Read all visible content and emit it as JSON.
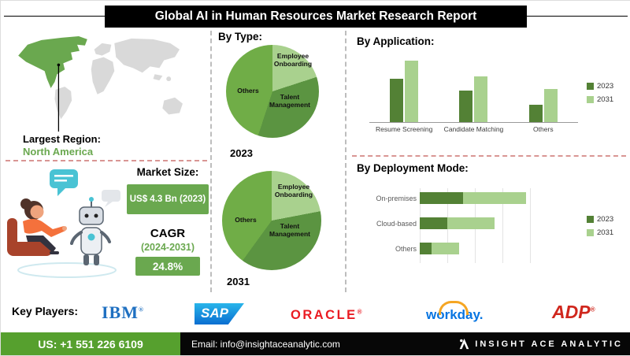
{
  "header": {
    "title": "Global AI in Human Resources Market Research Report"
  },
  "left_panel": {
    "largest_region_label": "Largest Region:",
    "largest_region_value": "North America",
    "market_size_label": "Market Size:",
    "market_size_value": "US$ 4.3 Bn (2023)",
    "cagr_label": "CAGR",
    "cagr_period": "(2024-2031)",
    "cagr_value": "24.8%"
  },
  "sections": {
    "by_type_label": "By Type:",
    "by_application_label": "By Application:",
    "by_deployment_label": "By Deployment Mode:"
  },
  "chart_data": [
    {
      "type": "pie",
      "title": "By Type — 2023",
      "year_label": "2023",
      "labels": [
        "Employee Onboarding",
        "Talent Management",
        "Others"
      ],
      "values": [
        20,
        35,
        45
      ],
      "values_unit": "percent (estimated)",
      "colors": [
        "#a9d18e",
        "#5b9441",
        "#70ad47"
      ]
    },
    {
      "type": "pie",
      "title": "By Type — 2031",
      "year_label": "2031",
      "labels": [
        "Employee Onboarding",
        "Talent Management",
        "Others"
      ],
      "values": [
        22,
        38,
        40
      ],
      "values_unit": "percent (estimated)",
      "colors": [
        "#a9d18e",
        "#5b9441",
        "#70ad47"
      ]
    },
    {
      "type": "bar",
      "title": "By Application",
      "categories": [
        "Resume Screening",
        "Candidate Matching",
        "Others"
      ],
      "series": [
        {
          "name": "2023",
          "values": [
            55,
            40,
            22
          ],
          "color": "#538135"
        },
        {
          "name": "2031",
          "values": [
            78,
            58,
            42
          ],
          "color": "#a9d18e"
        }
      ],
      "xlabel": "",
      "ylabel": "",
      "axis_note": "value axis unlabeled; values are relative heights estimated from pixels",
      "legend_position": "right",
      "grid": false
    },
    {
      "type": "bar",
      "orientation": "horizontal",
      "stacked": true,
      "title": "By Deployment Mode",
      "categories": [
        "On-premises",
        "Cloud-based",
        "Others"
      ],
      "series": [
        {
          "name": "2023",
          "values": [
            55,
            35,
            15
          ],
          "color": "#538135"
        },
        {
          "name": "2031",
          "values": [
            80,
            60,
            35
          ],
          "color": "#a9d18e"
        }
      ],
      "xlabel": "",
      "ylabel": "",
      "axis_note": "value axis unlabeled; values are relative lengths estimated from pixels",
      "legend_position": "right",
      "grid": true
    }
  ],
  "key_players": {
    "label": "Key Players:",
    "logos": [
      {
        "name": "IBM",
        "reg": "®",
        "color": "#1f70c1"
      },
      {
        "name": "SAP",
        "reg": "",
        "color": "#0a6ed1"
      },
      {
        "name": "ORACLE",
        "reg": "®",
        "color": "#ea1b22"
      },
      {
        "name": "workday.",
        "reg": "",
        "color": "#0875e1"
      },
      {
        "name": "ADP",
        "reg": "®",
        "color": "#d0271d"
      }
    ]
  },
  "footer": {
    "phone": "US: +1 551 226 6109",
    "email": "Email: info@insightaceanalytic.com",
    "brand": "INSIGHT ACE ANALYTIC"
  },
  "colors": {
    "series_2023": "#538135",
    "series_2031": "#a9d18e",
    "accent_green": "#6aa84f",
    "footer_green": "#56a02e",
    "header_black": "#000000"
  }
}
